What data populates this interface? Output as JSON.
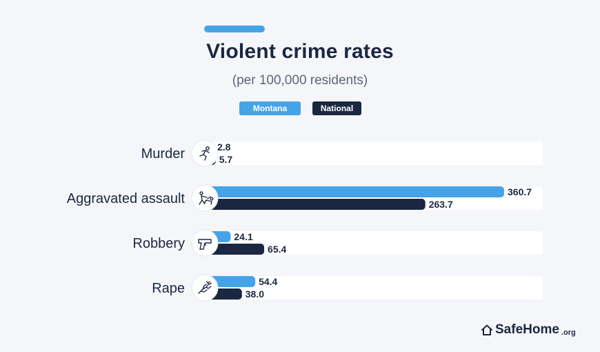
{
  "header": {
    "title": "Violent crime rates",
    "subtitle": "(per 100,000 residents)"
  },
  "legend": [
    {
      "label": "Montana",
      "color": "#46a3e8"
    },
    {
      "label": "National",
      "color": "#1b2741"
    }
  ],
  "colors": {
    "accent": "#46a3e8",
    "primary": "#1b2741",
    "track": "#ffffff",
    "background": "#f4f6f9"
  },
  "chart_data": {
    "type": "bar",
    "orientation": "horizontal",
    "title": "Violent crime rates",
    "subtitle": "(per 100,000 residents)",
    "categories": [
      "Murder",
      "Aggravated assault",
      "Robbery",
      "Rape"
    ],
    "category_icons": [
      "running-figure-icon",
      "assault-figures-icon",
      "handgun-icon",
      "struggling-hands-icon"
    ],
    "series": [
      {
        "name": "Montana",
        "values": [
          2.8,
          360.7,
          24.1,
          54.4
        ]
      },
      {
        "name": "National",
        "values": [
          5.7,
          263.7,
          65.4,
          38.0
        ]
      }
    ],
    "value_labels": [
      [
        "2.8",
        "360.7",
        "24.1",
        "54.4"
      ],
      [
        "5.7",
        "263.7",
        "65.4",
        "38.0"
      ]
    ],
    "xlim": [
      0,
      360.7
    ],
    "grid": false,
    "legend_position": "top-center"
  },
  "branding": {
    "logo_text": "SafeHome",
    "logo_suffix": ".org"
  }
}
